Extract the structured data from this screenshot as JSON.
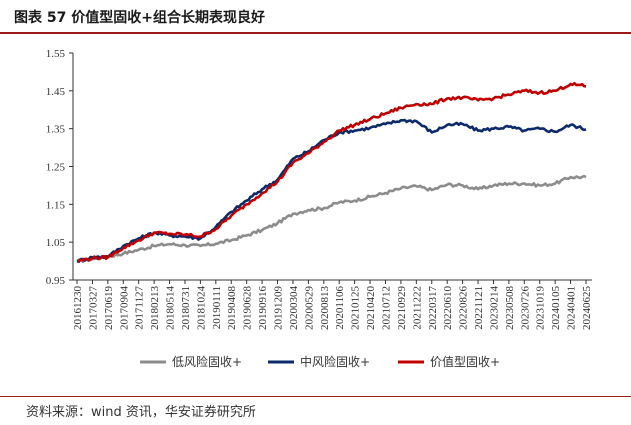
{
  "title": "图表 57 价值型固收+组合长期表现良好",
  "source": "资料来源：wind 资讯，华安证券研究所",
  "chart_data": {
    "type": "line",
    "ylim": [
      0.95,
      1.55
    ],
    "yticks": [
      "1.55",
      "1.45",
      "1.35",
      "1.25",
      "1.15",
      "1.05",
      "0.95"
    ],
    "x_labels": [
      "20161230",
      "20170327",
      "20170619",
      "20170904",
      "20171127",
      "20180213",
      "20180514",
      "20180731",
      "20181024",
      "20190111",
      "20190408",
      "20190628",
      "20190916",
      "20191209",
      "20200304",
      "20200529",
      "20200813",
      "20201106",
      "20210125",
      "20210420",
      "20210712",
      "20210929",
      "20211222",
      "20220317",
      "20220610",
      "20220826",
      "20221121",
      "20230214",
      "20230508",
      "20230726",
      "20231019",
      "20240105",
      "20240401",
      "20240625"
    ],
    "legend_position": "bottom",
    "series": [
      {
        "name": "低风险固收+",
        "color": "#8c8c8c",
        "values": [
          1.0,
          1.005,
          1.012,
          1.02,
          1.03,
          1.04,
          1.045,
          1.042,
          1.04,
          1.046,
          1.055,
          1.068,
          1.082,
          1.1,
          1.125,
          1.135,
          1.14,
          1.155,
          1.16,
          1.17,
          1.18,
          1.192,
          1.198,
          1.188,
          1.202,
          1.2,
          1.19,
          1.2,
          1.205,
          1.205,
          1.2,
          1.205,
          1.222,
          1.222
        ]
      },
      {
        "name": "中风险固收+",
        "color": "#0d2a6b",
        "values": [
          1.0,
          1.01,
          1.012,
          1.04,
          1.06,
          1.075,
          1.068,
          1.065,
          1.06,
          1.09,
          1.13,
          1.16,
          1.19,
          1.215,
          1.27,
          1.29,
          1.32,
          1.34,
          1.345,
          1.352,
          1.362,
          1.372,
          1.37,
          1.34,
          1.36,
          1.362,
          1.345,
          1.35,
          1.355,
          1.345,
          1.35,
          1.342,
          1.36,
          1.348
        ]
      },
      {
        "name": "价值型固收+",
        "color": "#c00000",
        "values": [
          1.0,
          1.008,
          1.01,
          1.035,
          1.055,
          1.075,
          1.072,
          1.07,
          1.065,
          1.085,
          1.12,
          1.15,
          1.18,
          1.21,
          1.26,
          1.285,
          1.315,
          1.345,
          1.36,
          1.375,
          1.39,
          1.405,
          1.415,
          1.415,
          1.43,
          1.432,
          1.425,
          1.43,
          1.44,
          1.45,
          1.445,
          1.45,
          1.468,
          1.462
        ]
      }
    ]
  }
}
